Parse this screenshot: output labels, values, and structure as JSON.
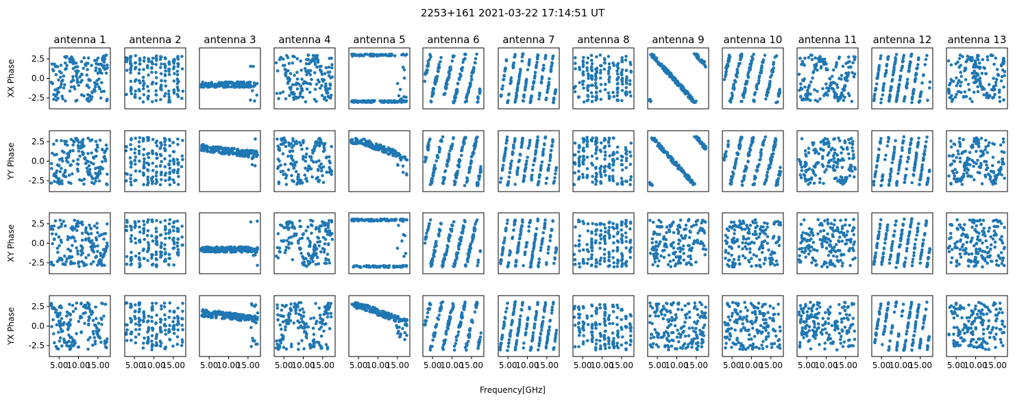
{
  "figure": {
    "title": "2253+161 2021-03-22 17:14:51 UT",
    "xlabel": "Frequency[GHz]"
  },
  "colors": {
    "marker": "#1f77b4",
    "axes": "#000000",
    "text": "#000000"
  },
  "chart_data": {
    "type": "scatter",
    "layout": "grid",
    "rows": [
      "XX Phase",
      "YY Phase",
      "XY Phase",
      "YX Phase"
    ],
    "columns": [
      "antenna 1",
      "antenna 2",
      "antenna 3",
      "antenna 4",
      "antenna 5",
      "antenna 6",
      "antenna 7",
      "antenna 8",
      "antenna 9",
      "antenna 10",
      "antenna 11",
      "antenna 12",
      "antenna 13"
    ],
    "xlabel": "Frequency[GHz]",
    "xlim": [
      2.5,
      18.2
    ],
    "ylim": [
      -3.9,
      3.9
    ],
    "xticks": [
      5.0,
      10.0,
      15.0
    ],
    "xtick_labels": [
      "5.00",
      "10.00",
      "15.00"
    ],
    "yticks": [
      2.5,
      0.0,
      -2.5
    ],
    "ytick_labels": [
      "2.5",
      "0.0",
      "-2.5"
    ],
    "x_range_observed": [
      3.0,
      17.5
    ],
    "patterns": [
      [
        "noisy",
        "stripes-vert",
        "flat-low",
        "noisy",
        "edge-wrap",
        "slope-pos-3",
        "slope-pos-4",
        "stripes-vert",
        "slope-neg",
        "slope-pos-3",
        "noisy",
        "slope-pos-4",
        "noisy"
      ],
      [
        "noisy",
        "stripes-vert",
        "flat-high",
        "noisy",
        "flat-high-decline",
        "slope-pos-3",
        "slope-pos-4",
        "stripes-vert",
        "slope-neg",
        "slope-pos-3",
        "noisy",
        "slope-pos-4",
        "noisy"
      ],
      [
        "noisy",
        "stripes-vert",
        "flat-low",
        "noisy",
        "edge-wrap",
        "slope-pos-3",
        "slope-pos-4",
        "stripes-vert",
        "uniform",
        "uniform",
        "uniform",
        "slope-pos-4",
        "uniform"
      ],
      [
        "noisy",
        "stripes-vert",
        "flat-high",
        "noisy",
        "flat-high-decline",
        "slope-pos-3",
        "slope-pos-4",
        "stripes-vert",
        "uniform",
        "uniform",
        "uniform",
        "slope-pos-4",
        "uniform"
      ]
    ]
  }
}
